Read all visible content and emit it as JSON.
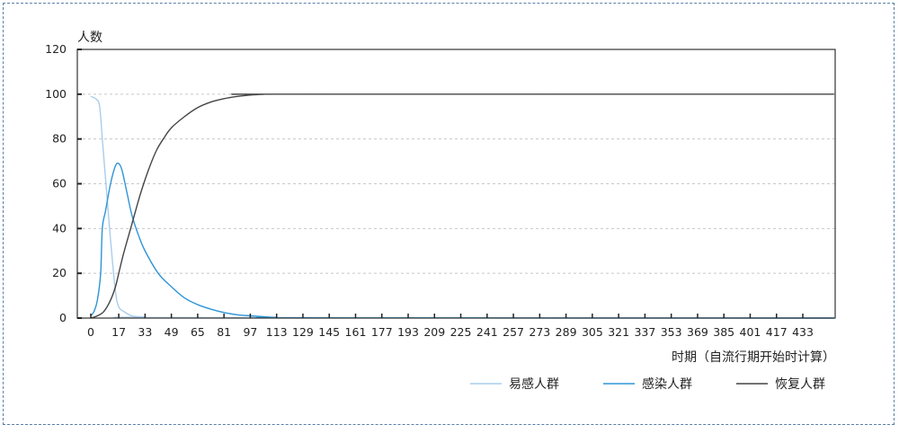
{
  "chart_data": {
    "type": "line",
    "ylabel": "人数",
    "xlabel": "时期（自流行期开始时计算）",
    "ylim": [
      0,
      120
    ],
    "yticks": [
      0,
      20,
      40,
      60,
      80,
      100,
      120
    ],
    "xlim": [
      0,
      452
    ],
    "xticks": [
      0,
      17,
      33,
      49,
      65,
      81,
      97,
      113,
      129,
      145,
      161,
      177,
      193,
      209,
      225,
      241,
      257,
      273,
      289,
      305,
      321,
      337,
      353,
      369,
      385,
      401,
      417,
      433
    ],
    "grid": "horizontal dashed",
    "legend_position": "bottom-right",
    "series": [
      {
        "name": "易感人群",
        "color": "#a9cdec",
        "x": [
          0,
          3,
          5,
          6,
          7,
          9,
          12,
          15,
          17,
          20,
          25,
          33,
          49,
          452
        ],
        "y": [
          99,
          98,
          96,
          90,
          80,
          62,
          35,
          12,
          5,
          3,
          1,
          0.5,
          0.2,
          0
        ]
      },
      {
        "name": "感染人群",
        "color": "#2e95d6",
        "x": [
          0,
          2,
          4,
          6,
          7,
          9,
          12,
          15,
          17,
          19,
          22,
          25,
          29,
          33,
          41,
          49,
          57,
          65,
          73,
          81,
          89,
          97,
          105,
          113,
          130,
          452
        ],
        "y": [
          1,
          3,
          8,
          20,
          40,
          48,
          60,
          68,
          69,
          66,
          56,
          46,
          37,
          30,
          20,
          14,
          9,
          6,
          4,
          2.5,
          1.5,
          1,
          0.6,
          0.3,
          0.1,
          0
        ]
      },
      {
        "name": "恢复人群",
        "color": "#444444",
        "x": [
          0,
          4,
          8,
          12,
          15,
          17,
          20,
          25,
          30,
          35,
          40,
          45,
          49,
          57,
          65,
          73,
          81,
          89,
          97,
          105,
          113,
          452
        ],
        "y": [
          0,
          1,
          3,
          8,
          14,
          20,
          29,
          42,
          55,
          66,
          75,
          81,
          85,
          90,
          94,
          96.5,
          98,
          99,
          99.6,
          99.9,
          100,
          100
        ]
      }
    ]
  }
}
